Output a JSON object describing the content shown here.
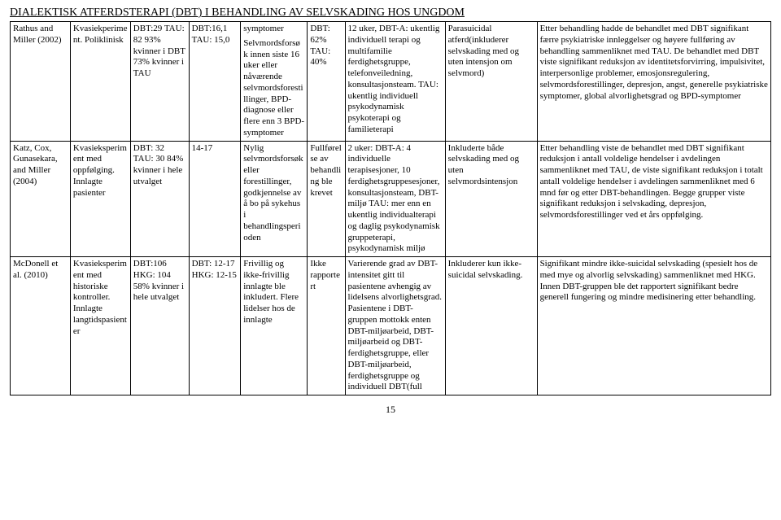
{
  "page": {
    "title": "DIALEKTISK ATFERDSTERAPI (DBT) I BEHANDLING AV SELVSKADING HOS UNGDOM",
    "number": "15"
  },
  "sym_continued": "symptomer",
  "rows": [
    {
      "c0": "Rathus and Miller (2002)",
      "c1": "Kvasiekperiment. Poliklinisk",
      "c2": "DBT:29 TAU: 82 93% kvinner i DBT 73% kvinner i TAU",
      "c3": "DBT:16,1 TAU: 15,0",
      "c4": "Selvmordsforsøk innen siste 16 uker eller nåværende selvmordsforestillinger, BPD-diagnose eller flere enn 3 BPD-symptomer",
      "c5": "DBT: 62% TAU: 40%",
      "c6": "12 uker, DBT-A: ukentlig individuell terapi og multifamilie ferdighetsgruppe, telefonveiledning, konsultasjonsteam. TAU: ukentlig individuell psykodynamisk psykoterapi og familieterapi",
      "c7": "Parasuicidal atferd(inkluderer selvskading med og uten intensjon om selvmord)",
      "c8": "Etter behandling hadde de behandlet med DBT signifikant færre psykiatriske innleggelser og høyere fullføring av behandling sammenliknet med TAU. De behandlet med DBT viste signifikant reduksjon av identitetsforvirring, impulsivitet, interpersonlige problemer, emosjonsregulering, selvmordsforestillinger, depresjon, angst, generelle psykiatriske symptomer, global alvorlighetsgrad og BPD-symptomer"
    },
    {
      "c0": "Katz, Cox, Gunasekara, and Miller (2004)",
      "c1": "Kvasieksperiment med oppfølging. Innlagte pasienter",
      "c2": "DBT: 32 TAU: 30 84% kvinner i hele utvalget",
      "c3": "14-17",
      "c4": "Nylig selvmordsforsøk eller forestillinger, godkjennelse av å bo på sykehus i behandlingsperioden",
      "c5": "Fullførelse av behandling ble krevet",
      "c6": "2 uker: DBT-A: 4 individuelle terapisesjoner, 10 ferdighetsgruppesesjoner, konsultasjonsteam, DBT- miljø TAU: mer enn en ukentlig individualterapi og daglig psykodynamisk gruppeterapi, psykodynamisk miljø",
      "c7": "Inkluderte både selvskading med og uten selvmordsintensjon",
      "c8": "Etter behandling viste de behandlet med DBT signifikant reduksjon i antall voldelige hendelser i avdelingen sammenliknet med TAU, de viste signifikant reduksjon i totalt antall voldelige hendelser i avdelingen sammenliknet med 6 mnd før og etter DBT-behandlingen. Begge grupper viste signifikant reduksjon i selvskading, depresjon, selvmordsforestillinger ved et års oppfølging."
    },
    {
      "c0": "McDonell et al. (2010)",
      "c1": "Kvasieksperiment med historiske kontroller. Innlagte langtidspasienter",
      "c2": "DBT:106 HKG: 104 58% kvinner i hele utvalget",
      "c3": "DBT: 12-17 HKG: 12-15",
      "c4": "Frivillig og ikke-frivillig innlagte ble inkludert. Flere lidelser hos de innlagte",
      "c5": "Ikke rapportert",
      "c6": "Varierende grad av DBT-intensitet gitt til pasientene avhengig av lidelsens alvorlighetsgrad. Pasientene i DBT-gruppen mottokk enten DBT-miljøarbeid, DBT-miljøarbeid og DBT-ferdighetsgruppe, eller DBT-miljøarbeid, ferdighetsgruppe og individuell DBT(full",
      "c7": "Inkluderer kun ikke-suicidal selvskading.",
      "c8": "Signifikant mindre ikke-suicidal selvskading (spesielt hos de med mye og alvorlig selvskading) sammenliknet med HKG. Innen DBT-gruppen ble det rapportert signifikant bedre generell fungering og mindre medisinering etter behandling."
    }
  ]
}
